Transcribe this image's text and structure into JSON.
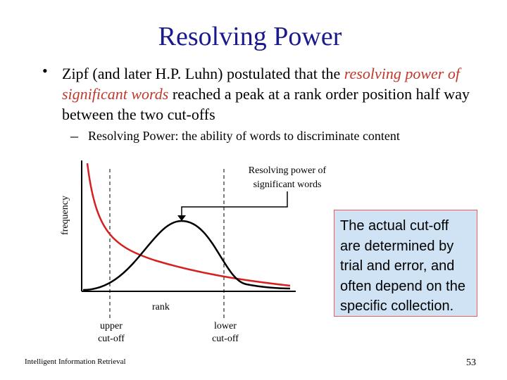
{
  "slide": {
    "title": "Resolving Power",
    "bullet": {
      "marker": "•",
      "part1": "Zipf (and later H.P. Luhn) postulated that the ",
      "highlight": "resolving power of significant words",
      "part2": "  reached a peak at a rank order position half way between the two cut-offs"
    },
    "sub_bullet": {
      "marker": "–",
      "text": "Resolving Power: the ability of words to discriminate content"
    },
    "callout": "The actual cut-off are determined by trial and error, and often depend on the specific collection.",
    "footer_left": "Intelligent Information Retrieval",
    "page_number": "53",
    "colors": {
      "title": "#1a1a8c",
      "highlight": "#c0392b",
      "curve_red": "#d62020",
      "callout_bg": "#cfe3f5"
    }
  },
  "diagram": {
    "y_axis_label": "frequency",
    "x_axis_label": "rank",
    "peak_label_line1": "Resolving power of",
    "peak_label_line2": "significant words",
    "upper_cutoff_line1": "upper",
    "upper_cutoff_line2": "cut-off",
    "lower_cutoff_line1": "lower",
    "lower_cutoff_line2": "cut-off"
  }
}
